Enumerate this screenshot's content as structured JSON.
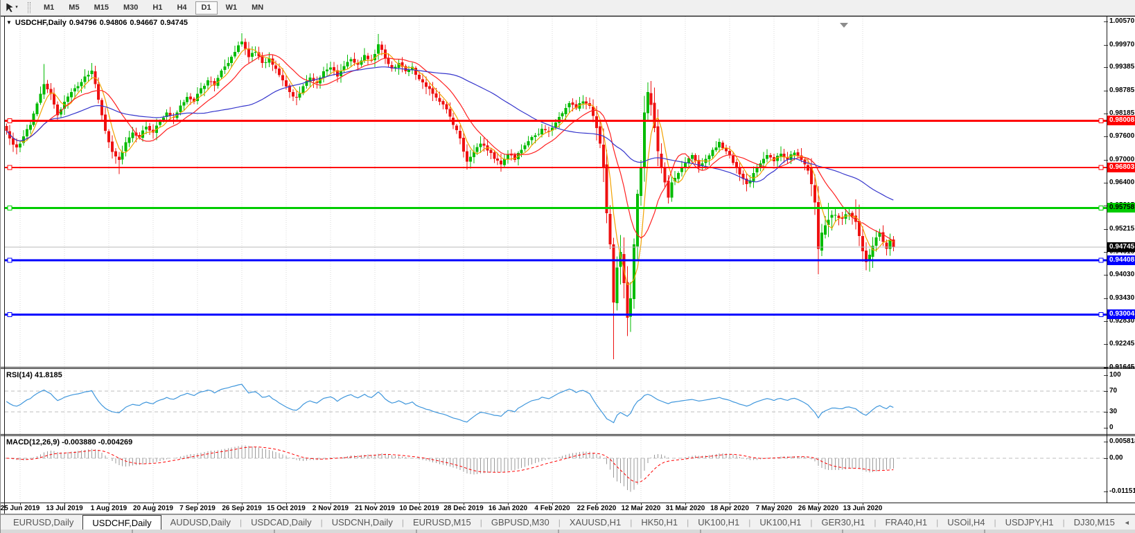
{
  "icons": {
    "window_menu": "▼",
    "toolbar_caret": "▾",
    "tab_scroll_left": "◄",
    "tab_scroll_right": "►"
  },
  "toolbar": {
    "timeframes": [
      "M1",
      "M5",
      "M15",
      "M30",
      "H1",
      "H4",
      "D1",
      "W1",
      "MN"
    ],
    "active": "D1"
  },
  "chart": {
    "symbol": "USDCHF,Daily",
    "open": "0.94796",
    "high": "0.94806",
    "low": "0.94667",
    "close": "0.94745"
  },
  "indicators_text": {
    "rsi": "RSI(14) 41.8185",
    "macd": "MACD(12,26,9) -0.003880 -0.004269"
  },
  "price_axis_ticks": [
    "1.00570",
    "0.99970",
    "0.99385",
    "0.98785",
    "0.98185",
    "0.97600",
    "0.97000",
    "0.96400",
    "0.95815",
    "0.95215",
    "0.94615",
    "0.94030",
    "0.93430",
    "0.92830",
    "0.92245",
    "0.91645"
  ],
  "rsi_axis_ticks": [
    "100",
    "70",
    "30",
    "0"
  ],
  "macd_axis_ticks": [
    "0.005818",
    "0.00",
    "-0.011514"
  ],
  "date_labels": [
    "25 Jun 2019",
    "13 Jul 2019",
    "1 Aug 2019",
    "20 Aug 2019",
    "7 Sep 2019",
    "26 Sep 2019",
    "15 Oct 2019",
    "2 Nov 2019",
    "21 Nov 2019",
    "10 Dec 2019",
    "28 Dec 2019",
    "16 Jan 2020",
    "4 Feb 2020",
    "22 Feb 2020",
    "12 Mar 2020",
    "31 Mar 2020",
    "18 Apr 2020",
    "7 May 2020",
    "26 May 2020",
    "13 Jun 2020"
  ],
  "tabs": {
    "items": [
      "EURUSD,Daily",
      "USDCHF,Daily",
      "AUDUSD,Daily",
      "USDCAD,Daily",
      "USDCNH,Daily",
      "EURUSD,M15",
      "GBPUSD,M30",
      "XAUUSD,H1",
      "HK50,H1",
      "UK100,H1",
      "UK100,H1",
      "GER30,H1",
      "FRA40,H1",
      "USOil,H4",
      "USDJPY,H1",
      "DJ30,M15"
    ],
    "active_index": 1
  },
  "chart_data": {
    "type": "candlestick",
    "symbol": "USDCHF",
    "timeframe": "Daily",
    "title": "USDCHF,Daily 0.94796 0.94806 0.94667 0.94745",
    "ohlc_current": {
      "open": 0.94796,
      "high": 0.94806,
      "low": 0.94667,
      "close": 0.94745
    },
    "price_axis_range": [
      0.91645,
      1.0057
    ],
    "bars_total": 261,
    "first_tick_bar": 4,
    "bars_per_label": 13,
    "bull_color": "#00BB00",
    "bear_color": "#EE1111",
    "close_anchors": [
      [
        0,
        0.9775
      ],
      [
        1,
        0.9755
      ],
      [
        3,
        0.9732
      ],
      [
        5,
        0.976
      ],
      [
        7,
        0.979
      ],
      [
        9,
        0.9845
      ],
      [
        11,
        0.9895
      ],
      [
        13,
        0.987
      ],
      [
        15,
        0.9815
      ],
      [
        17,
        0.985
      ],
      [
        19,
        0.9875
      ],
      [
        21,
        0.989
      ],
      [
        23,
        0.9915
      ],
      [
        25,
        0.993
      ],
      [
        27,
        0.9855
      ],
      [
        29,
        0.9775
      ],
      [
        31,
        0.972
      ],
      [
        33,
        0.97
      ],
      [
        35,
        0.9745
      ],
      [
        37,
        0.977
      ],
      [
        39,
        0.9758
      ],
      [
        41,
        0.9785
      ],
      [
        43,
        0.977
      ],
      [
        45,
        0.98
      ],
      [
        47,
        0.9822
      ],
      [
        49,
        0.981
      ],
      [
        51,
        0.984
      ],
      [
        53,
        0.9862
      ],
      [
        55,
        0.985
      ],
      [
        57,
        0.9885
      ],
      [
        59,
        0.9905
      ],
      [
        61,
        0.9892
      ],
      [
        63,
        0.993
      ],
      [
        65,
        0.995
      ],
      [
        67,
        0.9978
      ],
      [
        69,
        1.0005
      ],
      [
        71,
        0.9965
      ],
      [
        73,
        0.9978
      ],
      [
        75,
        0.995
      ],
      [
        77,
        0.9962
      ],
      [
        79,
        0.9935
      ],
      [
        81,
        0.9905
      ],
      [
        83,
        0.9875
      ],
      [
        85,
        0.986
      ],
      [
        87,
        0.989
      ],
      [
        89,
        0.9912
      ],
      [
        91,
        0.9898
      ],
      [
        93,
        0.9928
      ],
      [
        95,
        0.9938
      ],
      [
        97,
        0.9915
      ],
      [
        99,
        0.9942
      ],
      [
        101,
        0.996
      ],
      [
        103,
        0.9945
      ],
      [
        105,
        0.997
      ],
      [
        107,
        0.9955
      ],
      [
        109,
        0.9998
      ],
      [
        111,
        0.9962
      ],
      [
        113,
        0.9935
      ],
      [
        115,
        0.995
      ],
      [
        117,
        0.9928
      ],
      [
        119,
        0.994
      ],
      [
        121,
        0.9908
      ],
      [
        123,
        0.9888
      ],
      [
        125,
        0.987
      ],
      [
        127,
        0.985
      ],
      [
        129,
        0.983
      ],
      [
        131,
        0.979
      ],
      [
        133,
        0.9755
      ],
      [
        135,
        0.9695
      ],
      [
        137,
        0.972
      ],
      [
        139,
        0.9742
      ],
      [
        141,
        0.9724
      ],
      [
        143,
        0.9702
      ],
      [
        145,
        0.9688
      ],
      [
        147,
        0.9714
      ],
      [
        149,
        0.97
      ],
      [
        151,
        0.9726
      ],
      [
        153,
        0.9748
      ],
      [
        155,
        0.9763
      ],
      [
        157,
        0.978
      ],
      [
        159,
        0.9773
      ],
      [
        161,
        0.9796
      ],
      [
        163,
        0.982
      ],
      [
        165,
        0.9846
      ],
      [
        167,
        0.9833
      ],
      [
        169,
        0.9851
      ],
      [
        171,
        0.9839
      ],
      [
        173,
        0.9782
      ],
      [
        174,
        0.9742
      ],
      [
        175,
        0.9682
      ],
      [
        176,
        0.9562
      ],
      [
        177,
        0.9482
      ],
      [
        178,
        0.9332
      ],
      [
        179,
        0.9422
      ],
      [
        180,
        0.9462
      ],
      [
        181,
        0.9382
      ],
      [
        182,
        0.9292
      ],
      [
        183,
        0.9342
      ],
      [
        184,
        0.9482
      ],
      [
        185,
        0.9612
      ],
      [
        186,
        0.9682
      ],
      [
        187,
        0.9822
      ],
      [
        188,
        0.9875
      ],
      [
        189,
        0.9842
      ],
      [
        190,
        0.9782
      ],
      [
        191,
        0.9722
      ],
      [
        192,
        0.9682
      ],
      [
        193,
        0.9642
      ],
      [
        194,
        0.9602
      ],
      [
        195,
        0.9642
      ],
      [
        197,
        0.9666
      ],
      [
        199,
        0.9692
      ],
      [
        201,
        0.9712
      ],
      [
        203,
        0.9682
      ],
      [
        205,
        0.9702
      ],
      [
        207,
        0.9726
      ],
      [
        209,
        0.9746
      ],
      [
        211,
        0.9722
      ],
      [
        213,
        0.9692
      ],
      [
        215,
        0.9662
      ],
      [
        217,
        0.9637
      ],
      [
        219,
        0.9666
      ],
      [
        221,
        0.9691
      ],
      [
        223,
        0.9712
      ],
      [
        225,
        0.9696
      ],
      [
        227,
        0.9716
      ],
      [
        229,
        0.9701
      ],
      [
        231,
        0.9718
      ],
      [
        233,
        0.97
      ],
      [
        234,
        0.9688
      ],
      [
        235,
        0.9672
      ],
      [
        237,
        0.959
      ],
      [
        238,
        0.947
      ],
      [
        239,
        0.9512
      ],
      [
        241,
        0.9545
      ],
      [
        243,
        0.9558
      ],
      [
        245,
        0.9548
      ],
      [
        247,
        0.9562
      ],
      [
        249,
        0.954
      ],
      [
        251,
        0.9464
      ],
      [
        252,
        0.9436
      ],
      [
        253,
        0.9455
      ],
      [
        254,
        0.9478
      ],
      [
        255,
        0.95
      ],
      [
        256,
        0.9512
      ],
      [
        257,
        0.9488
      ],
      [
        258,
        0.947
      ],
      [
        259,
        0.9494
      ],
      [
        260,
        0.94745
      ]
    ],
    "wick_low_overrides": {
      "33": 0.9663,
      "135": 0.9675,
      "178": 0.9185,
      "182": 0.9245,
      "238": 0.9405,
      "252": 0.9415
    },
    "wick_high_overrides": {
      "11": 0.9947,
      "25": 0.995,
      "69": 1.0027,
      "109": 1.0025,
      "188": 0.99,
      "256": 0.9522
    },
    "volatile_ranges": [
      [
        173,
        194
      ],
      [
        236,
        242
      ],
      [
        249,
        254
      ]
    ],
    "moving_averages": [
      {
        "name": "ma-fast",
        "window": 5,
        "color": "#F2A200"
      },
      {
        "name": "ma-medium",
        "window": 13,
        "color": "#FF2020"
      },
      {
        "name": "ma-slow",
        "window": 45,
        "color": "#3535CC"
      }
    ],
    "horizontal_levels": [
      {
        "price": 0.98008,
        "label": "0.98008",
        "color": "#FF0000",
        "width": 3,
        "text": "#FFFFFF"
      },
      {
        "price": 0.96803,
        "label": "0.96803",
        "color": "#FF0000",
        "width": 2,
        "text": "#FFFFFF"
      },
      {
        "price": 0.95758,
        "label": "0.95758",
        "color": "#00CC00",
        "width": 3,
        "text": "#000000"
      },
      {
        "price": 0.94408,
        "label": "0.94408",
        "color": "#0000FF",
        "width": 3,
        "text": "#FFFFFF"
      },
      {
        "price": 0.93004,
        "label": "0.93004",
        "color": "#0000FF",
        "width": 3,
        "text": "#FFFFFF"
      }
    ],
    "bid": {
      "price": 0.94745,
      "label": "0.94745",
      "line_color": "#B8B8B8",
      "label_bg": "#000000",
      "label_text": "#FFFFFF"
    },
    "rsi": {
      "period": 14,
      "current": 41.8185,
      "levels": [
        70,
        30
      ],
      "color": "#3E96DC",
      "range": [
        0,
        100
      ]
    },
    "macd": {
      "fast": 12,
      "slow": 26,
      "signal": 9,
      "current_macd": -0.00388,
      "current_signal": -0.004269,
      "histogram_color": "#9A9A9A",
      "signal_color": "#FF0000",
      "axis_max": 0.005818,
      "axis_min": -0.011514
    }
  }
}
